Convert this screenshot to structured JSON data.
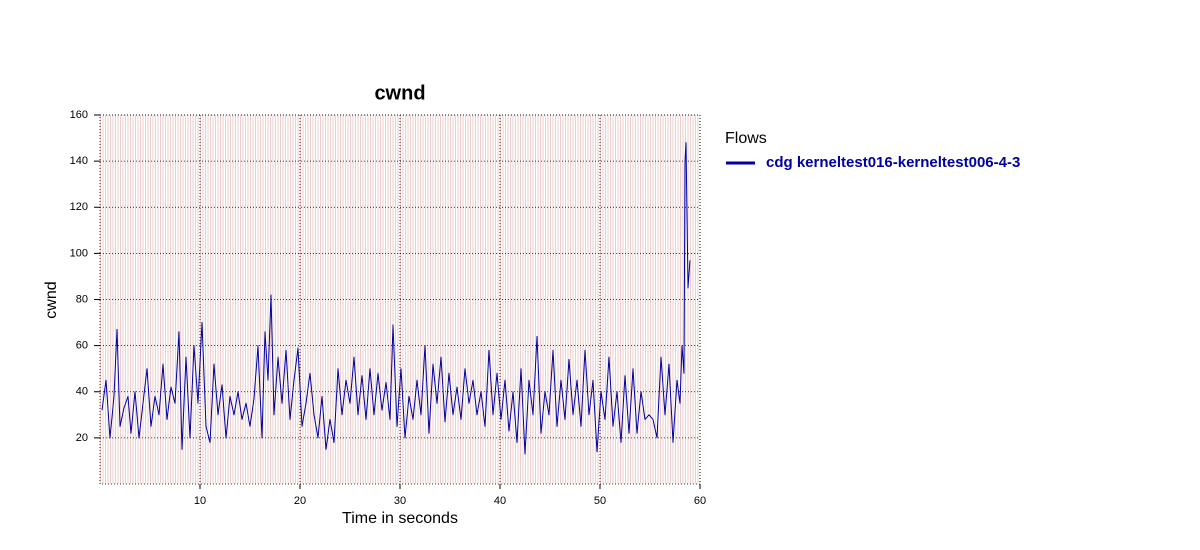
{
  "chart_data": {
    "type": "line",
    "title": "cwnd",
    "x_label": "Time in seconds",
    "y_label": "cwnd",
    "legend_title": "Flows",
    "legend_position": "right",
    "xlim": [
      0,
      60
    ],
    "ylim": [
      0,
      160
    ],
    "xticks": [
      10,
      20,
      30,
      40,
      50,
      60
    ],
    "yticks": [
      20,
      40,
      60,
      80,
      100,
      120,
      140,
      160
    ],
    "grid": true,
    "x": [
      0.2,
      0.6,
      1.0,
      1.4,
      1.7,
      2.0,
      2.4,
      2.8,
      3.1,
      3.5,
      3.9,
      4.3,
      4.7,
      5.1,
      5.5,
      5.9,
      6.3,
      6.7,
      7.1,
      7.5,
      7.9,
      8.2,
      8.6,
      9.0,
      9.4,
      9.8,
      10.2,
      10.6,
      11.0,
      11.4,
      11.8,
      12.2,
      12.6,
      13.0,
      13.4,
      13.8,
      14.2,
      14.6,
      15.0,
      15.4,
      15.8,
      16.2,
      16.5,
      16.8,
      17.1,
      17.4,
      17.8,
      18.2,
      18.6,
      19.0,
      19.4,
      19.8,
      20.2,
      20.6,
      21.0,
      21.4,
      21.8,
      22.2,
      22.6,
      23.0,
      23.4,
      23.8,
      24.2,
      24.6,
      25.0,
      25.4,
      25.8,
      26.2,
      26.6,
      27.0,
      27.4,
      27.8,
      28.2,
      28.6,
      29.0,
      29.3,
      29.7,
      30.1,
      30.5,
      30.9,
      31.3,
      31.7,
      32.1,
      32.5,
      32.9,
      33.3,
      33.7,
      34.1,
      34.5,
      34.9,
      35.3,
      35.7,
      36.1,
      36.5,
      36.9,
      37.3,
      37.7,
      38.1,
      38.5,
      38.9,
      39.3,
      39.7,
      40.1,
      40.5,
      40.9,
      41.3,
      41.7,
      42.1,
      42.5,
      42.9,
      43.3,
      43.7,
      44.1,
      44.5,
      44.9,
      45.3,
      45.7,
      46.1,
      46.5,
      46.9,
      47.3,
      47.7,
      48.1,
      48.5,
      48.9,
      49.3,
      49.7,
      50.1,
      50.5,
      50.9,
      51.3,
      51.7,
      52.1,
      52.5,
      52.9,
      53.3,
      53.7,
      54.1,
      54.5,
      54.9,
      55.3,
      55.7,
      56.1,
      56.5,
      56.9,
      57.3,
      57.7,
      58.0,
      58.2,
      58.4,
      58.5,
      58.6,
      58.8,
      59.0
    ],
    "series": [
      {
        "name": "cdg kerneltest016-kerneltest006-4-3",
        "color": "#0000a0",
        "values": [
          32,
          45,
          20,
          38,
          67,
          25,
          33,
          38,
          22,
          40,
          20,
          35,
          50,
          25,
          38,
          30,
          52,
          28,
          42,
          35,
          66,
          15,
          55,
          20,
          60,
          35,
          70,
          25,
          18,
          52,
          30,
          43,
          20,
          38,
          30,
          40,
          28,
          35,
          25,
          37,
          60,
          20,
          66,
          45,
          82,
          30,
          55,
          35,
          58,
          28,
          45,
          59,
          25,
          35,
          48,
          30,
          20,
          38,
          15,
          28,
          18,
          50,
          30,
          45,
          35,
          55,
          30,
          47,
          28,
          50,
          30,
          48,
          32,
          44,
          28,
          69,
          25,
          50,
          20,
          38,
          28,
          45,
          30,
          60,
          22,
          52,
          35,
          55,
          27,
          48,
          30,
          42,
          28,
          50,
          35,
          45,
          30,
          40,
          25,
          58,
          30,
          48,
          28,
          45,
          23,
          40,
          18,
          50,
          13,
          45,
          30,
          64,
          22,
          40,
          30,
          58,
          25,
          45,
          28,
          54,
          30,
          45,
          25,
          58,
          30,
          45,
          14,
          40,
          28,
          55,
          25,
          40,
          18,
          47,
          22,
          50,
          22,
          40,
          28,
          30,
          28,
          20,
          55,
          30,
          52,
          18,
          45,
          35,
          60,
          48,
          140,
          148,
          85,
          97
        ]
      }
    ]
  }
}
